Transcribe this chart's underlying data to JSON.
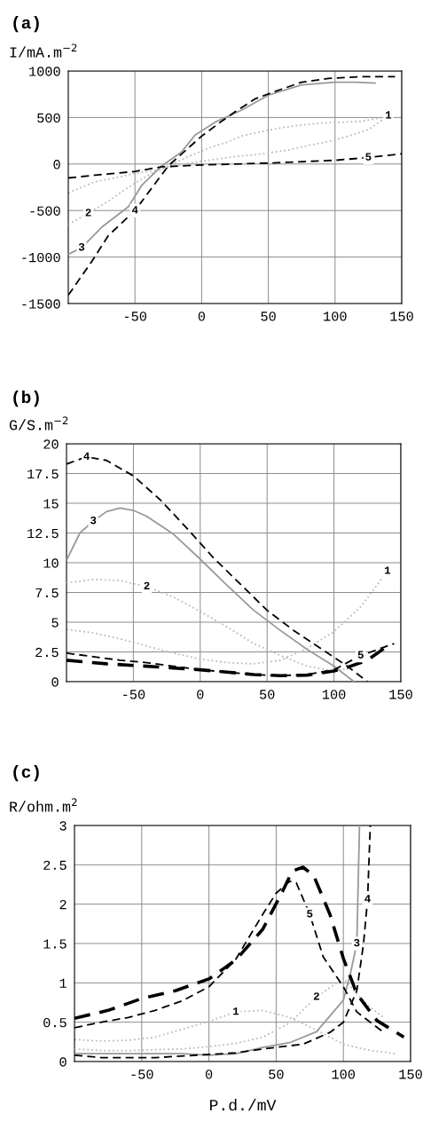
{
  "chart_data": [
    {
      "type": "line",
      "title": "(a)",
      "ylabel": "I/mA.m$^{−2}$",
      "xlim": [
        -100,
        150
      ],
      "xticks": [
        -50,
        0,
        50,
        100,
        150
      ],
      "ylim": [
        -1500,
        1000
      ],
      "yticks": [
        -1500,
        -1000,
        -500,
        0,
        500,
        1000
      ],
      "grid": true,
      "marker": "none",
      "series": [
        {
          "name": "1",
          "color": "#bbbbbb",
          "line_style": "dotted",
          "x": [
            -100,
            -95,
            -80,
            -65,
            -50,
            -35,
            -20,
            -5,
            10,
            25,
            40,
            50,
            65,
            80,
            95,
            110,
            125,
            140
          ],
          "values": [
            -310,
            -280,
            -190,
            -150,
            -100,
            -70,
            -20,
            20,
            50,
            80,
            100,
            120,
            150,
            200,
            240,
            300,
            370,
            520
          ]
        },
        {
          "name": "2",
          "color": "#bbbbbb",
          "line_style": "dotted",
          "x": [
            -100,
            -85,
            -70,
            -55,
            -40,
            -25,
            -10,
            5,
            20,
            30,
            45,
            60,
            75,
            90,
            105,
            120,
            135
          ],
          "values": [
            -650,
            -530,
            -400,
            -250,
            -120,
            -20,
            80,
            170,
            240,
            300,
            350,
            390,
            420,
            440,
            450,
            460,
            500
          ]
        },
        {
          "name": "3",
          "color": "#999999",
          "line_style": "solid",
          "x": [
            -100,
            -90,
            -75,
            -55,
            -45,
            -30,
            -15,
            -5,
            10,
            30,
            50,
            75,
            100,
            115,
            130
          ],
          "values": [
            -970,
            -900,
            -680,
            -460,
            -230,
            -20,
            130,
            310,
            450,
            580,
            740,
            850,
            880,
            880,
            870
          ]
        },
        {
          "name": "4",
          "color": "#000000",
          "line_style": "dashed",
          "x": [
            -100,
            -83,
            -70,
            -50,
            -37,
            -25,
            0,
            15,
            25,
            40,
            55,
            75,
            95,
            120,
            145
          ],
          "values": [
            -1410,
            -1060,
            -770,
            -500,
            -250,
            -20,
            300,
            460,
            560,
            700,
            780,
            880,
            920,
            940,
            940
          ]
        },
        {
          "name": "5",
          "color": "#000000",
          "line_style": "dashed",
          "x": [
            -100,
            -80,
            -50,
            -30,
            0,
            50,
            100,
            125,
            150
          ],
          "values": [
            -150,
            -120,
            -80,
            -30,
            -10,
            10,
            40,
            70,
            110
          ]
        }
      ]
    },
    {
      "type": "line",
      "title": "(b)",
      "ylabel": "G/S.m$^{−2}$",
      "xlim": [
        -100,
        150
      ],
      "xticks": [
        -50,
        0,
        50,
        100,
        150
      ],
      "ylim": [
        0,
        20
      ],
      "yticks": [
        0,
        2.5,
        5,
        7.5,
        10,
        12.5,
        15,
        17.5,
        20
      ],
      "grid": true,
      "marker": "none",
      "series": [
        {
          "name": "1",
          "color": "#bbbbbb",
          "line_style": "dotted",
          "x": [
            -100,
            -80,
            -60,
            -40,
            -20,
            0,
            20,
            40,
            60,
            80,
            100,
            120,
            140
          ],
          "values": [
            4.4,
            4.1,
            3.6,
            3.0,
            2.4,
            1.9,
            1.6,
            1.5,
            1.8,
            2.8,
            4.2,
            6.3,
            9.3
          ]
        },
        {
          "name": "2",
          "color": "#bbbbbb",
          "line_style": "dotted",
          "x": [
            -100,
            -80,
            -60,
            -40,
            -20,
            0,
            20,
            40,
            60,
            80,
            100,
            110,
            120
          ],
          "values": [
            8.3,
            8.6,
            8.5,
            8.0,
            7.1,
            5.9,
            4.6,
            3.2,
            2.2,
            1.3,
            0.9,
            1.1,
            1.6
          ]
        },
        {
          "name": "3",
          "color": "#999999",
          "line_style": "solid",
          "x": [
            -100,
            -90,
            -80,
            -70,
            -60,
            -50,
            -40,
            -20,
            0,
            20,
            40,
            60,
            80,
            100,
            115
          ],
          "values": [
            10.2,
            12.5,
            13.5,
            14.3,
            14.6,
            14.4,
            13.9,
            12.4,
            10.3,
            8.1,
            6.0,
            4.3,
            2.7,
            1.3,
            0
          ]
        },
        {
          "name": "4",
          "color": "#000000",
          "line_style": "dashed",
          "x": [
            -100,
            -85,
            -70,
            -50,
            -30,
            -10,
            10,
            30,
            50,
            70,
            90,
            110,
            125
          ],
          "values": [
            18.3,
            18.9,
            18.6,
            17.3,
            15.3,
            12.9,
            10.4,
            8.2,
            6.0,
            4.3,
            2.8,
            1.3,
            0
          ]
        },
        {
          "name": "5",
          "color": "#000000",
          "line_style": "dashed",
          "x": [
            -100,
            -80,
            -60,
            -40,
            -20,
            0,
            20,
            40,
            60,
            80,
            100,
            120,
            145
          ],
          "values": [
            2.4,
            2.1,
            1.8,
            1.6,
            1.3,
            1.0,
            0.8,
            0.6,
            0.5,
            0.6,
            1.0,
            2.2,
            3.2
          ]
        },
        {
          "color": "#000000",
          "line_style": "dashed",
          "x": [
            -100,
            -70,
            -40,
            -20,
            0,
            20,
            40,
            60,
            80,
            100,
            110,
            125,
            140
          ],
          "values": [
            1.8,
            1.5,
            1.3,
            1.15,
            1.0,
            0.8,
            0.6,
            0.5,
            0.55,
            0.9,
            1.2,
            1.8,
            3.0
          ]
        }
      ]
    },
    {
      "type": "line",
      "title": "(c)",
      "ylabel": "R/ohm.m$^{2}$",
      "xlabel": "P.d./mV",
      "xlim": [
        -100,
        150
      ],
      "xticks": [
        -50,
        0,
        50,
        100,
        150
      ],
      "ylim": [
        0,
        3
      ],
      "yticks": [
        0,
        0.5,
        1,
        1.5,
        2,
        2.5,
        3
      ],
      "grid": true,
      "marker": "none",
      "series": [
        {
          "name": "1",
          "color": "#bbbbbb",
          "line_style": "dotted",
          "x": [
            -100,
            -80,
            -60,
            -40,
            -20,
            0,
            20,
            40,
            60,
            80,
            100,
            120,
            140
          ],
          "values": [
            0.28,
            0.26,
            0.27,
            0.31,
            0.41,
            0.51,
            0.63,
            0.65,
            0.56,
            0.4,
            0.22,
            0.14,
            0.1
          ]
        },
        {
          "name": "2",
          "color": "#bbbbbb",
          "line_style": "dotted",
          "x": [
            -100,
            -80,
            -60,
            -40,
            -20,
            0,
            20,
            40,
            60,
            80,
            100,
            110,
            120,
            130
          ],
          "values": [
            0.16,
            0.14,
            0.14,
            0.15,
            0.16,
            0.19,
            0.23,
            0.31,
            0.49,
            0.82,
            1.06,
            0.86,
            0.69,
            0.56
          ]
        },
        {
          "name": "3",
          "color": "#999999",
          "line_style": "solid",
          "x": [
            -100,
            -60,
            -20,
            0,
            20,
            40,
            60,
            80,
            100,
            105,
            110,
            112
          ],
          "values": [
            0.1,
            0.1,
            0.1,
            0.08,
            0.1,
            0.18,
            0.24,
            0.38,
            0.78,
            1.1,
            1.5,
            3.0
          ]
        },
        {
          "name": "4",
          "color": "#000000",
          "line_style": "dashed",
          "x": [
            -100,
            -80,
            -40,
            0,
            20,
            40,
            70,
            90,
            100,
            110,
            115,
            118,
            120
          ],
          "values": [
            0.08,
            0.05,
            0.05,
            0.09,
            0.11,
            0.16,
            0.22,
            0.37,
            0.5,
            0.9,
            1.5,
            2.06,
            3.0
          ]
        },
        {
          "name": "5",
          "color": "#000000",
          "line_style": "dashed",
          "x": [
            -100,
            -80,
            -60,
            -40,
            -20,
            0,
            20,
            40,
            50,
            60,
            65,
            75,
            85,
            100,
            110,
            120,
            130
          ],
          "values": [
            0.43,
            0.5,
            0.56,
            0.65,
            0.77,
            0.95,
            1.3,
            1.87,
            2.14,
            2.29,
            2.27,
            1.87,
            1.33,
            0.95,
            0.63,
            0.5,
            0.37
          ]
        },
        {
          "color": "#000000",
          "line_style": "dashed",
          "x": [
            -100,
            -75,
            -50,
            -25,
            0,
            20,
            40,
            55,
            62,
            70,
            78,
            90,
            100,
            110,
            125,
            145
          ],
          "values": [
            0.55,
            0.65,
            0.8,
            0.9,
            1.05,
            1.29,
            1.68,
            2.17,
            2.42,
            2.47,
            2.36,
            1.87,
            1.31,
            0.86,
            0.52,
            0.31
          ]
        }
      ]
    }
  ]
}
